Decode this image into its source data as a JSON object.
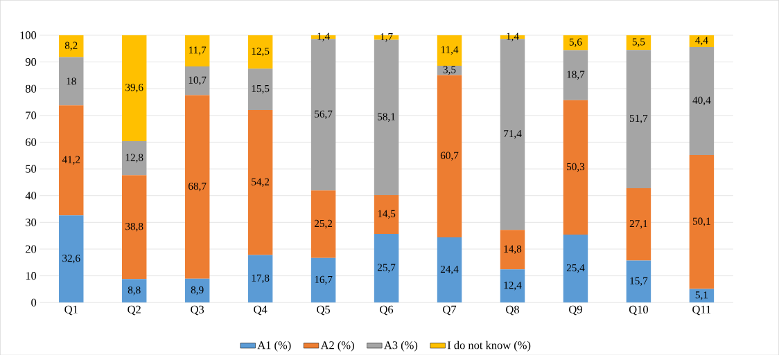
{
  "chart_data": {
    "type": "bar",
    "stacked": true,
    "categories": [
      "Q1",
      "Q2",
      "Q3",
      "Q4",
      "Q5",
      "Q6",
      "Q7",
      "Q8",
      "Q9",
      "Q10",
      "Q11"
    ],
    "series": [
      {
        "name": "A1 (%)",
        "color": "#5b9bd5",
        "values": [
          32.6,
          8.8,
          8.9,
          17.8,
          16.7,
          25.7,
          24.4,
          12.4,
          25.4,
          15.7,
          5.1
        ],
        "value_labels": [
          "32,6",
          "8,8",
          "8,9",
          "17,8",
          "16,7",
          "25,7",
          "24,4",
          "12,4",
          "25,4",
          "15,7",
          "5,1"
        ]
      },
      {
        "name": "A2 (%)",
        "color": "#ed7d31",
        "values": [
          41.2,
          38.8,
          68.7,
          54.2,
          25.2,
          14.5,
          60.7,
          14.8,
          50.3,
          27.1,
          50.1
        ],
        "value_labels": [
          "41,2",
          "38,8",
          "68,7",
          "54,2",
          "25,2",
          "14,5",
          "60,7",
          "14,8",
          "50,3",
          "27,1",
          "50,1"
        ]
      },
      {
        "name": "A3 (%)",
        "color": "#a5a5a5",
        "values": [
          18,
          12.8,
          10.7,
          15.5,
          56.7,
          58.1,
          3.5,
          71.4,
          18.7,
          51.7,
          40.4
        ],
        "value_labels": [
          "18",
          "12,8",
          "10,7",
          "15,5",
          "56,7",
          "58,1",
          "3,5",
          "71,4",
          "18,7",
          "51,7",
          "40,4"
        ]
      },
      {
        "name": "I do not know (%)",
        "color": "#ffc000",
        "values": [
          8.2,
          39.6,
          11.7,
          12.5,
          1.4,
          1.7,
          11.4,
          1.4,
          5.6,
          5.5,
          4.4
        ],
        "value_labels": [
          "8,2",
          "39,6",
          "11,7",
          "12,5",
          "1,4",
          "1,7",
          "11,4",
          "1,4",
          "5,6",
          "5,5",
          "4,4"
        ]
      }
    ],
    "ylim": [
      0,
      100
    ],
    "yticks": [
      0,
      10,
      20,
      30,
      40,
      50,
      60,
      70,
      80,
      90,
      100
    ],
    "grid": "y",
    "legend": "bottom"
  }
}
